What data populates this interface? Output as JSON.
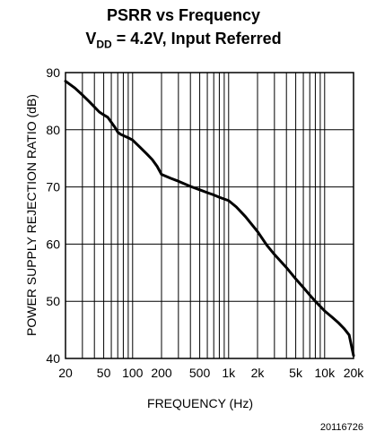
{
  "chart_data": {
    "type": "line",
    "title_line1": "PSRR vs Frequency",
    "title_line2_prefix": "V",
    "title_line2_sub": "DD",
    "title_line2_suffix": " = 4.2V, Input Referred",
    "xlabel": "FREQUENCY (Hz)",
    "ylabel": "POWER SUPPLY REJECTION RATIO (dB)",
    "xscale": "log",
    "xlim": [
      20,
      20000
    ],
    "ylim": [
      40,
      90
    ],
    "grid": true,
    "x_ticks": [
      20,
      50,
      100,
      200,
      500,
      1000,
      2000,
      5000,
      10000,
      20000
    ],
    "x_tick_labels": [
      "20",
      "50",
      "100",
      "200",
      "500",
      "1k",
      "2k",
      "5k",
      "10k",
      "20k"
    ],
    "y_ticks": [
      40,
      50,
      60,
      70,
      80,
      90
    ],
    "y_tick_labels": [
      "40",
      "50",
      "60",
      "70",
      "80",
      "90"
    ],
    "series": [
      {
        "x": [
          20,
          25,
          30,
          35,
          40,
          45,
          50,
          55,
          60,
          65,
          70,
          75,
          80,
          90,
          100,
          120,
          140,
          160,
          180,
          200,
          250,
          300,
          400,
          500,
          600,
          700,
          800,
          1000,
          1200,
          1500,
          2000,
          2500,
          3000,
          4000,
          5000,
          6000,
          7000,
          8000,
          10000,
          12000,
          14000,
          16000,
          18000,
          20000
        ],
        "y": [
          88.5,
          87.3,
          86.1,
          85.0,
          84.0,
          83.1,
          82.6,
          82.2,
          81.3,
          80.5,
          79.6,
          79.2,
          79.0,
          78.6,
          78.2,
          76.9,
          75.8,
          74.8,
          73.6,
          72.2,
          71.5,
          71.0,
          70.1,
          69.5,
          69.0,
          68.6,
          68.2,
          67.6,
          66.5,
          64.8,
          62.2,
          59.8,
          58.2,
          55.9,
          53.9,
          52.4,
          51.1,
          50.0,
          48.3,
          47.2,
          46.2,
          45.2,
          44.1,
          40.5
        ]
      }
    ],
    "figure_id": "20116726"
  }
}
